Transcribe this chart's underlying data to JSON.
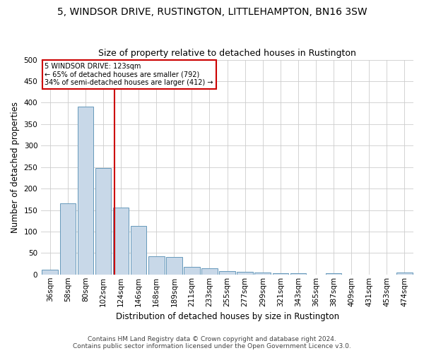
{
  "title": "5, WINDSOR DRIVE, RUSTINGTON, LITTLEHAMPTON, BN16 3SW",
  "subtitle": "Size of property relative to detached houses in Rustington",
  "xlabel": "Distribution of detached houses by size in Rustington",
  "ylabel": "Number of detached properties",
  "footer_line1": "Contains HM Land Registry data © Crown copyright and database right 2024.",
  "footer_line2": "Contains public sector information licensed under the Open Government Licence v3.0.",
  "categories": [
    "36sqm",
    "58sqm",
    "80sqm",
    "102sqm",
    "124sqm",
    "146sqm",
    "168sqm",
    "189sqm",
    "211sqm",
    "233sqm",
    "255sqm",
    "277sqm",
    "299sqm",
    "321sqm",
    "343sqm",
    "365sqm",
    "387sqm",
    "409sqm",
    "431sqm",
    "453sqm",
    "474sqm"
  ],
  "values": [
    11,
    165,
    390,
    248,
    155,
    113,
    42,
    40,
    18,
    15,
    8,
    6,
    5,
    3,
    3,
    0,
    3,
    0,
    0,
    0,
    4
  ],
  "bar_color": "#c8d8e8",
  "bar_edge_color": "#6699bb",
  "property_label": "5 WINDSOR DRIVE: 123sqm",
  "annotation_line1": "← 65% of detached houses are smaller (792)",
  "annotation_line2": "34% of semi-detached houses are larger (412) →",
  "vline_color": "#cc0000",
  "vline_x_index": 3.64,
  "annotation_border_color": "#cc0000",
  "ylim": [
    0,
    500
  ],
  "yticks": [
    0,
    50,
    100,
    150,
    200,
    250,
    300,
    350,
    400,
    450,
    500
  ],
  "grid_color": "#cccccc",
  "background_color": "#ffffff",
  "title_fontsize": 10,
  "subtitle_fontsize": 9,
  "axis_label_fontsize": 8.5,
  "tick_fontsize": 7.5,
  "footer_fontsize": 6.5
}
